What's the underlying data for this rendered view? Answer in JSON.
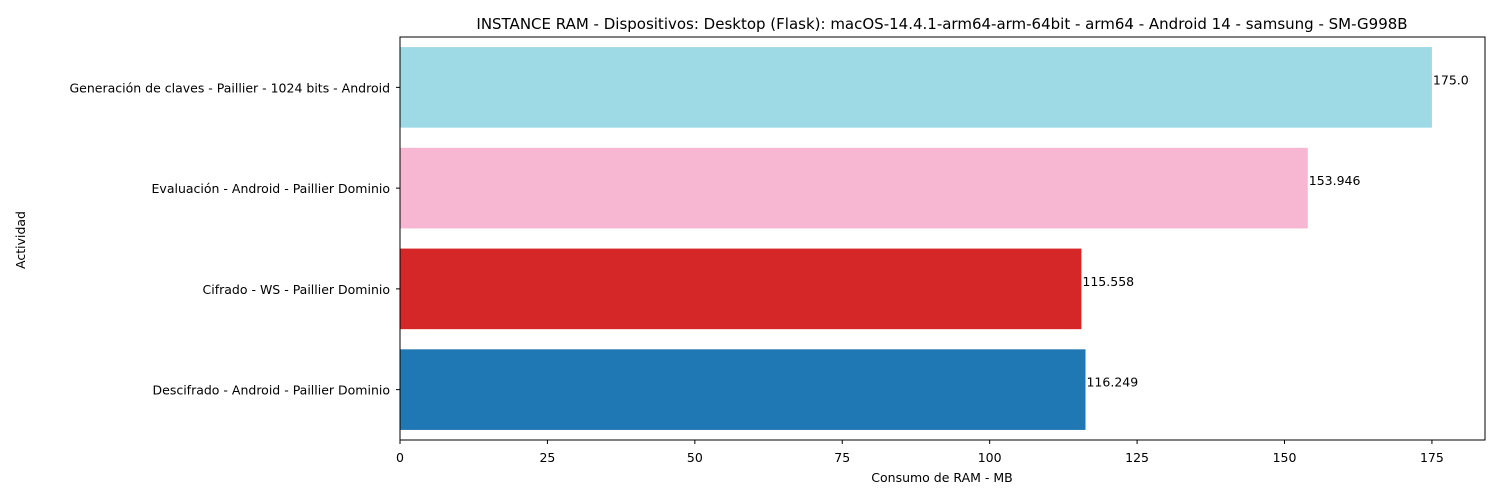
{
  "chart_data": {
    "type": "bar",
    "orientation": "horizontal",
    "title": "INSTANCE RAM - Dispositivos: Desktop (Flask): macOS-14.4.1-arm64-arm-64bit - arm64 - Android 14 - samsung - SM-G998B",
    "xlabel": "Consumo de RAM - MB",
    "ylabel": "Actividad",
    "xlim": [
      0,
      184
    ],
    "xticks": [
      0,
      25,
      50,
      75,
      100,
      125,
      150,
      175
    ],
    "categories": [
      "Generación de claves - Paillier - 1024 bits - Android",
      "Evaluación - Android - Paillier Dominio",
      "Cifrado - WS - Paillier Dominio",
      "Descifrado - Android - Paillier Dominio"
    ],
    "values": [
      175.0,
      153.946,
      115.558,
      116.249
    ],
    "value_labels": [
      "175.0",
      "153.946",
      "115.558",
      "116.249"
    ],
    "colors": [
      "#9edae5",
      "#f7b6d2",
      "#d62728",
      "#1f77b4"
    ],
    "grid": false,
    "legend": "none"
  }
}
